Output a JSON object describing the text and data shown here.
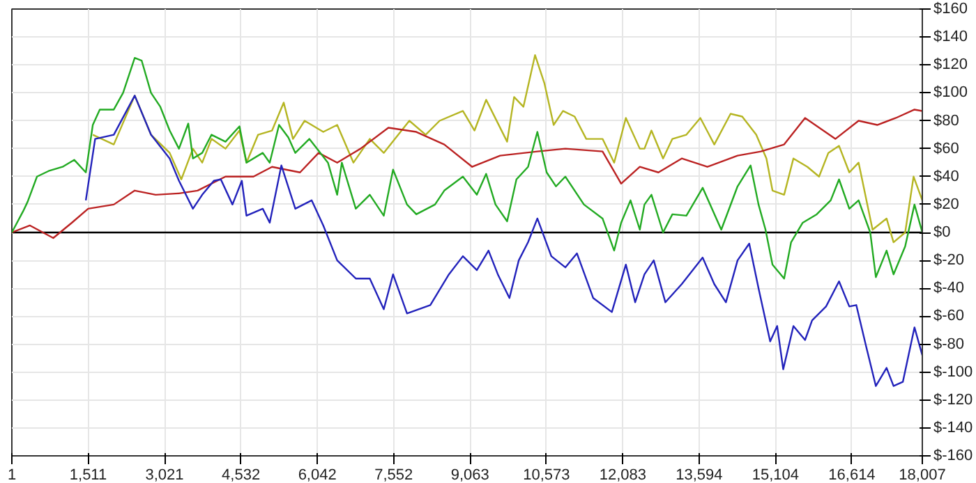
{
  "chart_data": {
    "type": "line",
    "grid": true,
    "marker": "none",
    "line_style": "solid",
    "xlim": [
      1,
      18007
    ],
    "xticks": [
      1,
      {
        "value": 1511,
        "label": "1,511"
      },
      {
        "value": 3021,
        "label": "3,021"
      },
      {
        "value": 4532,
        "label": "4,532"
      },
      {
        "value": 6042,
        "label": "6,042"
      },
      {
        "value": 7552,
        "label": "7,552"
      },
      {
        "value": 9063,
        "label": "9,063"
      },
      {
        "value": 10573,
        "label": "10,573"
      },
      {
        "value": 12083,
        "label": "12,083"
      },
      {
        "value": 13594,
        "label": "13,594"
      },
      {
        "value": 15104,
        "label": "15,104"
      },
      {
        "value": 16614,
        "label": "16,614"
      },
      {
        "value": 18007,
        "label": "18,007"
      }
    ],
    "ylim": [
      -160,
      160
    ],
    "yticks": [
      {
        "value": -160,
        "label": "$-160"
      },
      {
        "value": -140,
        "label": "$-140"
      },
      {
        "value": -120,
        "label": "$-120"
      },
      {
        "value": -100,
        "label": "$-100"
      },
      {
        "value": -80,
        "label": "$-80"
      },
      {
        "value": -60,
        "label": "$-60"
      },
      {
        "value": -40,
        "label": "$-40"
      },
      {
        "value": -20,
        "label": "$-20"
      },
      {
        "value": 0,
        "label": "$0"
      },
      {
        "value": 20,
        "label": "$20"
      },
      {
        "value": 40,
        "label": "$40"
      },
      {
        "value": 60,
        "label": "$60"
      },
      {
        "value": 80,
        "label": "$80"
      },
      {
        "value": 100,
        "label": "$100"
      },
      {
        "value": 120,
        "label": "$120"
      },
      {
        "value": 140,
        "label": "$140"
      },
      {
        "value": 160,
        "label": "$160"
      }
    ],
    "ref_lines": [
      {
        "axis": "y",
        "value": 0,
        "color": "#000000"
      }
    ],
    "series": [
      {
        "color": "#b5b522",
        "x": [
          1602,
          2017,
          2431,
          2753,
          3122,
          3352,
          3582,
          3766,
          3950,
          4226,
          4503,
          4641,
          4871,
          5147,
          5377,
          5561,
          5791,
          6160,
          6435,
          6757,
          7080,
          7356,
          7862,
          8185,
          8461,
          8921,
          9151,
          9381,
          9796,
          9934,
          10118,
          10348,
          10532,
          10716,
          10901,
          11131,
          11361,
          11683,
          11913,
          12144,
          12420,
          12512,
          12650,
          12880,
          13064,
          13341,
          13617,
          13893,
          14215,
          14445,
          14722,
          14924,
          15044,
          15274,
          15458,
          15734,
          15965,
          16149,
          16360,
          16563,
          16747,
          17023,
          17300,
          17438,
          17668,
          17834,
          18007
        ],
        "values": [
          70,
          63,
          98,
          70,
          57,
          38,
          60,
          50,
          67,
          60,
          73,
          50,
          70,
          73,
          93,
          67,
          80,
          72,
          77,
          50,
          67,
          57,
          80,
          70,
          80,
          87,
          73,
          95,
          65,
          97,
          90,
          127,
          107,
          77,
          87,
          83,
          67,
          67,
          50,
          82,
          60,
          60,
          73,
          53,
          67,
          70,
          82,
          63,
          85,
          83,
          70,
          53,
          30,
          27,
          53,
          47,
          40,
          57,
          62,
          43,
          50,
          2,
          10,
          -7,
          0,
          40,
          23
        ]
      },
      {
        "color": "#bb2222",
        "x": [
          1,
          359,
          820,
          1188,
          1510,
          2017,
          2431,
          2845,
          3306,
          3674,
          4226,
          4779,
          5147,
          5700,
          6068,
          6435,
          6896,
          7448,
          8000,
          8553,
          9105,
          9658,
          10394,
          10947,
          11683,
          12051,
          12420,
          12788,
          13249,
          13755,
          14353,
          14814,
          15274,
          15688,
          16287,
          16747,
          17116,
          17484,
          17852,
          18007
        ],
        "values": [
          0,
          5,
          -4,
          7,
          17,
          20,
          30,
          27,
          28,
          30,
          40,
          40,
          47,
          43,
          57,
          50,
          60,
          75,
          72,
          63,
          47,
          55,
          58,
          60,
          58,
          35,
          47,
          43,
          53,
          47,
          55,
          58,
          63,
          82,
          67,
          80,
          77,
          82,
          88,
          87
        ]
      },
      {
        "color": "#22aa22",
        "x": [
          1,
          221,
          313,
          498,
          728,
          1004,
          1234,
          1464,
          1602,
          1740,
          2017,
          2201,
          2431,
          2569,
          2753,
          2937,
          3122,
          3306,
          3490,
          3582,
          3766,
          3950,
          4226,
          4503,
          4641,
          4963,
          5101,
          5285,
          5469,
          5607,
          5884,
          6252,
          6435,
          6527,
          6803,
          7080,
          7356,
          7540,
          7816,
          8000,
          8369,
          8553,
          8921,
          9197,
          9381,
          9566,
          9796,
          9980,
          10210,
          10394,
          10578,
          10763,
          10947,
          11315,
          11683,
          11913,
          12051,
          12236,
          12420,
          12512,
          12650,
          12880,
          13064,
          13341,
          13663,
          14031,
          14353,
          14611,
          14768,
          14906,
          15044,
          15274,
          15412,
          15642,
          15919,
          16195,
          16360,
          16563,
          16747,
          16977,
          17088,
          17300,
          17438,
          17668,
          17852,
          18007
        ],
        "values": [
          0,
          15,
          22,
          40,
          44,
          47,
          52,
          43,
          77,
          88,
          88,
          100,
          125,
          123,
          100,
          90,
          73,
          60,
          78,
          53,
          57,
          70,
          65,
          76,
          50,
          57,
          50,
          77,
          68,
          57,
          67,
          50,
          27,
          50,
          17,
          27,
          12,
          45,
          20,
          13,
          20,
          30,
          40,
          27,
          42,
          20,
          8,
          38,
          47,
          72,
          43,
          33,
          40,
          20,
          10,
          -13,
          7,
          23,
          2,
          20,
          27,
          0,
          13,
          12,
          32,
          2,
          33,
          48,
          20,
          2,
          -23,
          -33,
          -7,
          7,
          13,
          23,
          38,
          17,
          23,
          0,
          -32,
          -13,
          -30,
          -10,
          20,
          0
        ]
      },
      {
        "color": "#2222bb",
        "x": [
          1464,
          1648,
          2017,
          2431,
          2753,
          3122,
          3306,
          3582,
          3766,
          3996,
          4134,
          4364,
          4549,
          4641,
          4963,
          5101,
          5331,
          5607,
          5930,
          6160,
          6435,
          6803,
          7080,
          7356,
          7540,
          7816,
          8277,
          8645,
          8921,
          9197,
          9428,
          9612,
          9842,
          10026,
          10210,
          10394,
          10670,
          10947,
          11177,
          11499,
          11867,
          12144,
          12328,
          12512,
          12696,
          12926,
          13249,
          13663,
          13893,
          14123,
          14353,
          14584,
          14768,
          14998,
          15136,
          15256,
          15458,
          15688,
          15827,
          16103,
          16360,
          16563,
          16701,
          16885,
          17088,
          17300,
          17438,
          17622,
          17852,
          18007
        ],
        "values": [
          23,
          67,
          70,
          98,
          70,
          53,
          37,
          17,
          27,
          37,
          38,
          20,
          37,
          12,
          17,
          7,
          48,
          17,
          23,
          5,
          -20,
          -33,
          -33,
          -55,
          -30,
          -58,
          -52,
          -30,
          -17,
          -27,
          -13,
          -30,
          -47,
          -20,
          -7,
          10,
          -17,
          -25,
          -15,
          -47,
          -57,
          -23,
          -50,
          -30,
          -20,
          -50,
          -37,
          -18,
          -37,
          -50,
          -20,
          -8,
          -40,
          -78,
          -67,
          -98,
          -67,
          -77,
          -63,
          -53,
          -35,
          -53,
          -52,
          -80,
          -110,
          -97,
          -110,
          -107,
          -68,
          -88
        ]
      }
    ]
  }
}
